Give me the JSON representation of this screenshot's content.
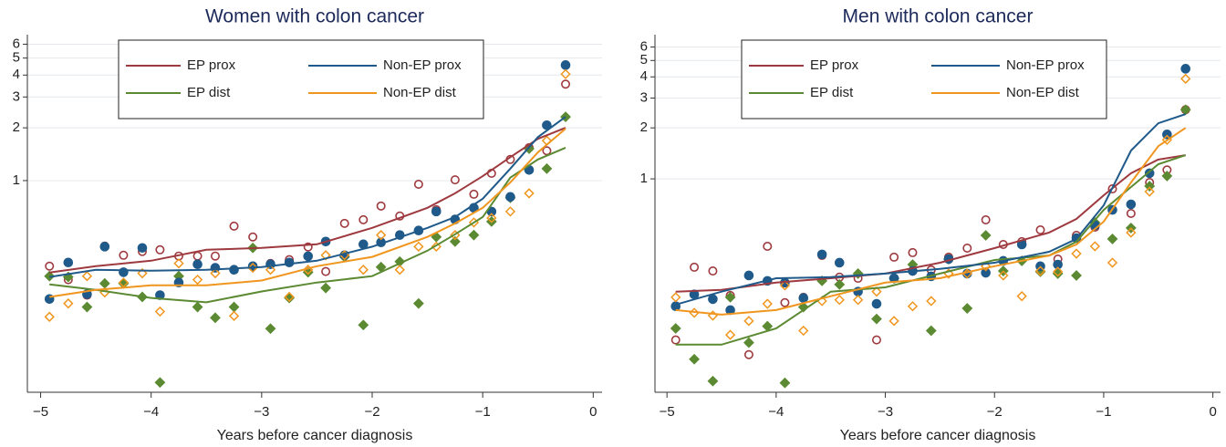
{
  "chart_data": [
    {
      "type": "scatter",
      "title": "Women with colon cancer",
      "x_label": "Years before cancer diagnosis",
      "log_y": true,
      "grid": true,
      "legend": "upper center",
      "xlim": [
        -5.12,
        0.08
      ],
      "ylim": [
        0.062,
        6.8
      ],
      "xticks": [
        {
          "value": -5,
          "label": "−5"
        },
        {
          "value": -4,
          "label": "−4"
        },
        {
          "value": -3,
          "label": "−3"
        },
        {
          "value": -2,
          "label": "−2"
        },
        {
          "value": -1,
          "label": "−1"
        },
        0
      ],
      "yticks": [
        1,
        2,
        3,
        4,
        5,
        6
      ],
      "x": [
        -4.92,
        -4.75,
        -4.58,
        -4.42,
        -4.25,
        -4.08,
        -3.92,
        -3.75,
        -3.58,
        -3.42,
        -3.25,
        -3.08,
        -2.92,
        -2.75,
        -2.58,
        -2.42,
        -2.25,
        -2.08,
        -1.92,
        -1.75,
        -1.58,
        -1.42,
        -1.25,
        -1.08,
        -0.92,
        -0.75,
        -0.58,
        -0.42,
        -0.25
      ],
      "fit_x": [
        -4.92,
        -4.5,
        -4,
        -3.5,
        -3,
        -2.5,
        -2,
        -1.5,
        -1.25,
        -1,
        -0.75,
        -0.5,
        -0.25
      ],
      "series": [
        {
          "name": "EP prox",
          "color": "#9e3a3f",
          "marker": "circle-open",
          "values": [
            0.325,
            0.272,
            0.222,
            0.423,
            0.375,
            0.394,
            0.403,
            0.371,
            0.371,
            0.371,
            0.55,
            0.477,
            0.337,
            0.354,
            0.418,
            0.303,
            0.57,
            0.598,
            0.716,
            0.628,
            0.953,
            0.682,
            1.01,
            0.836,
            1.1,
            1.32,
            1.54,
            1.48,
            3.55
          ],
          "fit": [
            0.299,
            0.325,
            0.349,
            0.403,
            0.413,
            0.433,
            0.537,
            0.699,
            0.846,
            1.06,
            1.36,
            1.73,
            2.0
          ]
        },
        {
          "name": "EP dist",
          "color": "#5b8a32",
          "marker": "diamond-filled",
          "values": [
            0.285,
            0.282,
            0.19,
            0.259,
            0.259,
            0.217,
            0.0705,
            0.285,
            0.19,
            0.165,
            0.19,
            0.413,
            0.143,
            0.214,
            0.3,
            0.244,
            0.367,
            0.15,
            0.321,
            0.345,
            0.199,
            0.477,
            0.449,
            0.489,
            0.584,
            0.797,
            1.52,
            1.17,
            2.31
          ],
          "fit": [
            0.256,
            0.238,
            0.214,
            0.202,
            0.233,
            0.262,
            0.285,
            0.398,
            0.494,
            0.62,
            1.04,
            1.32,
            1.54
          ]
        },
        {
          "name": "Non-EP prox",
          "color": "#1f5a8a",
          "marker": "circle-filled",
          "values": [
            0.211,
            0.341,
            0.225,
            0.42,
            0.3,
            0.413,
            0.222,
            0.262,
            0.333,
            0.318,
            0.31,
            0.325,
            0.333,
            0.341,
            0.37,
            0.449,
            0.375,
            0.433,
            0.444,
            0.489,
            0.519,
            0.666,
            0.6,
            0.699,
            0.666,
            0.807,
            1.15,
            2.07,
            4.56
          ],
          "fit": [
            0.282,
            0.31,
            0.306,
            0.31,
            0.321,
            0.349,
            0.42,
            0.537,
            0.62,
            0.788,
            1.17,
            1.77,
            2.31
          ]
        },
        {
          "name": "Non-EP dist",
          "color": "#f0961e",
          "marker": "diamond-open",
          "values": [
            0.167,
            0.199,
            0.285,
            0.23,
            0.262,
            0.296,
            0.179,
            0.337,
            0.272,
            0.296,
            0.169,
            0.318,
            0.31,
            0.217,
            0.31,
            0.375,
            0.375,
            0.31,
            0.489,
            0.31,
            0.42,
            0.42,
            0.489,
            0.577,
            0.612,
            0.666,
            0.846,
            1.69,
            4.05
          ],
          "fit": [
            0.217,
            0.238,
            0.253,
            0.253,
            0.269,
            0.325,
            0.367,
            0.477,
            0.57,
            0.699,
            0.976,
            1.45,
            1.98
          ]
        }
      ]
    },
    {
      "type": "scatter",
      "title": "Men with colon cancer",
      "x_label": "Years before cancer diagnosis",
      "log_y": true,
      "grid": true,
      "legend": "upper center",
      "xlim": [
        -5.11,
        0.07
      ],
      "ylim": [
        0.055,
        7.1
      ],
      "xticks": [
        {
          "value": -5,
          "label": "−5"
        },
        {
          "value": -4,
          "label": "−4"
        },
        {
          "value": -3,
          "label": "−3"
        },
        {
          "value": -2,
          "label": "−2"
        },
        {
          "value": -1,
          "label": "−1"
        },
        0
      ],
      "yticks": [
        1,
        2,
        3,
        4,
        5,
        6
      ],
      "x": [
        -4.92,
        -4.75,
        -4.58,
        -4.42,
        -4.25,
        -4.08,
        -3.92,
        -3.75,
        -3.58,
        -3.42,
        -3.25,
        -3.08,
        -2.92,
        -2.75,
        -2.58,
        -2.42,
        -2.25,
        -2.08,
        -1.92,
        -1.75,
        -1.58,
        -1.42,
        -1.25,
        -1.08,
        -0.92,
        -0.75,
        -0.58,
        -0.42,
        -0.25
      ],
      "fit_x": [
        -4.92,
        -4.5,
        -4,
        -3.5,
        -3,
        -2.5,
        -2,
        -1.5,
        -1.25,
        -1,
        -0.75,
        -0.5,
        -0.25
      ],
      "series": [
        {
          "name": "EP prox",
          "color": "#9e3a3f",
          "marker": "circle-open",
          "values": [
            0.112,
            0.301,
            0.286,
            0.205,
            0.0917,
            0.4,
            0.186,
            0.2,
            0.353,
            0.263,
            0.259,
            0.112,
            0.345,
            0.367,
            0.29,
            0.345,
            0.39,
            0.573,
            0.41,
            0.426,
            0.5,
            0.336,
            0.464,
            0.519,
            0.873,
            0.625,
            0.952,
            1.13,
            2.56
          ],
          "fit": [
            0.216,
            0.221,
            0.244,
            0.259,
            0.276,
            0.32,
            0.39,
            0.482,
            0.58,
            0.8,
            1.08,
            1.3,
            1.38
          ]
        },
        {
          "name": "EP dist",
          "color": "#5b8a32",
          "marker": "diamond-filled",
          "values": [
            0.131,
            0.0862,
            0.064,
            0.2,
            0.108,
            0.135,
            0.0625,
            0.175,
            0.25,
            0.238,
            0.276,
            0.149,
            0.259,
            0.312,
            0.127,
            0.336,
            0.172,
            0.464,
            0.286,
            0.328,
            0.283,
            0.276,
            0.269,
            0.552,
            0.442,
            0.513,
            0.906,
            1.04,
            2.56
          ],
          "fit": [
            0.105,
            0.105,
            0.131,
            0.216,
            0.229,
            0.276,
            0.332,
            0.353,
            0.426,
            0.656,
            0.895,
            1.22,
            1.38
          ]
        },
        {
          "name": "Non-EP prox",
          "color": "#1f5a8a",
          "marker": "circle-filled",
          "values": [
            0.177,
            0.208,
            0.195,
            0.168,
            0.269,
            0.25,
            0.244,
            0.198,
            0.358,
            0.32,
            0.216,
            0.183,
            0.259,
            0.286,
            0.266,
            0.336,
            0.276,
            0.279,
            0.328,
            0.41,
            0.305,
            0.312,
            0.447,
            0.532,
            0.656,
            0.707,
            1.08,
            1.83,
            4.47
          ],
          "fit": [
            0.181,
            0.216,
            0.259,
            0.263,
            0.276,
            0.294,
            0.32,
            0.371,
            0.442,
            0.698,
            1.47,
            2.13,
            2.41
          ]
        },
        {
          "name": "Non-EP dist",
          "color": "#f0961e",
          "marker": "diamond-open",
          "values": [
            0.2,
            0.162,
            0.156,
            0.12,
            0.145,
            0.183,
            0.235,
            0.127,
            0.19,
            0.193,
            0.193,
            0.216,
            0.145,
            0.177,
            0.19,
            0.276,
            0.276,
            0.305,
            0.269,
            0.203,
            0.286,
            0.283,
            0.362,
            0.4,
            0.32,
            0.482,
            0.841,
            1.7,
            3.9
          ],
          "fit": [
            0.168,
            0.158,
            0.168,
            0.203,
            0.244,
            0.259,
            0.305,
            0.353,
            0.41,
            0.559,
            0.952,
            1.56,
            2.0
          ]
        }
      ]
    }
  ]
}
